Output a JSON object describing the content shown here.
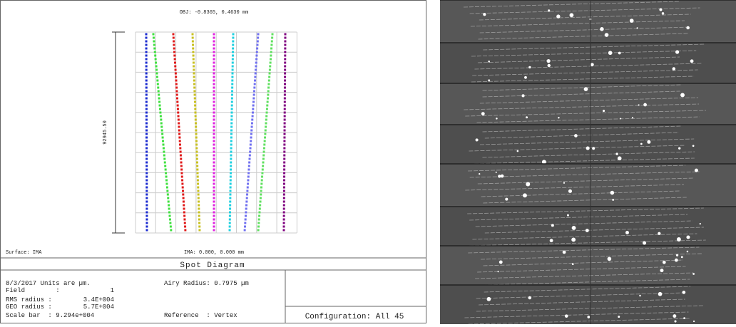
{
  "plot": {
    "header": "OBJ: -0.8365, 0.4630 mm",
    "scale_label": "92945.50",
    "surface": "Surface: IMA",
    "ima": "IMA: 0.000, 0.000 mm"
  },
  "info": {
    "title": "Spot Diagram",
    "date_units": "8/3/2017  Units are µm.",
    "airy": "Airy Radius: 0.7975 µm",
    "field_label": "Field        :",
    "field_value": "1",
    "rms_label": "RMS radius :",
    "rms_value": "3.4E+004",
    "geo_label": "GEO radius :",
    "geo_value": "5.7E+004",
    "scale_bar": "Scale bar  : 9.294e+004",
    "reference": "Reference  : Vertex",
    "configuration": "Configuration: All 45"
  }
}
